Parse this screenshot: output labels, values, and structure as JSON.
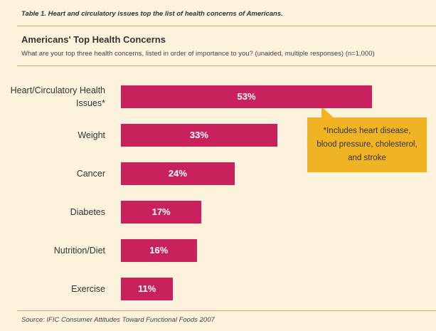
{
  "chart_data": {
    "type": "bar",
    "orientation": "horizontal",
    "caption": "Table 1. Heart and circulatory issues top the list of health concerns of Americans.",
    "title": "Americans' Top Health Concerns",
    "subtitle": "What are your top three health concerns, listed in order of importance to you? (unaided, multiple responses) (n=1,000)",
    "categories": [
      "Heart/Circulatory Health Issues*",
      "Weight",
      "Cancer",
      "Diabetes",
      "Nutrition/Diet",
      "Exercise"
    ],
    "values": [
      53,
      33,
      24,
      17,
      16,
      11
    ],
    "value_labels": [
      "53%",
      "33%",
      "24%",
      "17%",
      "16%",
      "11%"
    ],
    "color": "#c8215e",
    "annotation": "*Includes heart disease, blood pressure, cholesterol, and stroke",
    "source": "Source: IFIC Consumer Attitudes Toward Functional Foods 2007"
  }
}
